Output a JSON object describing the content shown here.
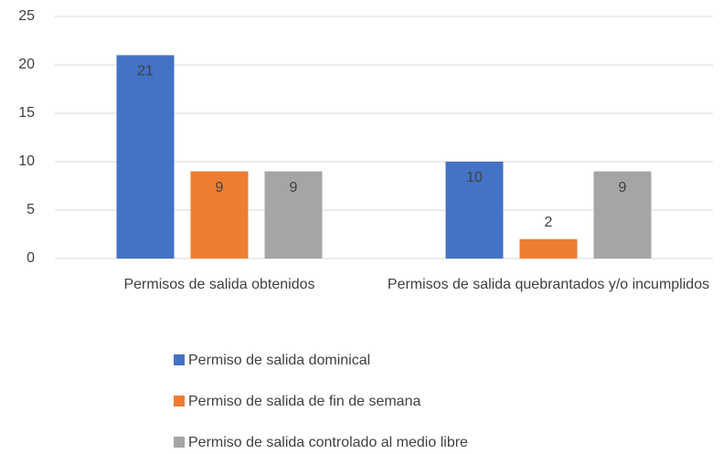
{
  "chart_data": {
    "type": "bar",
    "categories": [
      "Permisos de salida obtenidos",
      "Permisos de salida quebrantados y/o incumplidos"
    ],
    "series": [
      {
        "name": "Permiso de salida dominical",
        "color": "#4472c4",
        "values": [
          21,
          10
        ]
      },
      {
        "name": "Permiso de salida de fin de semana",
        "color": "#ed7d31",
        "values": [
          9,
          2
        ]
      },
      {
        "name": "Permiso de salida controlado al medio libre",
        "color": "#a5a5a5",
        "values": [
          9,
          9
        ]
      }
    ],
    "ylim": [
      0,
      25
    ],
    "yticks": [
      0,
      5,
      10,
      15,
      20,
      25
    ],
    "grid": true,
    "legend": "bottom"
  }
}
